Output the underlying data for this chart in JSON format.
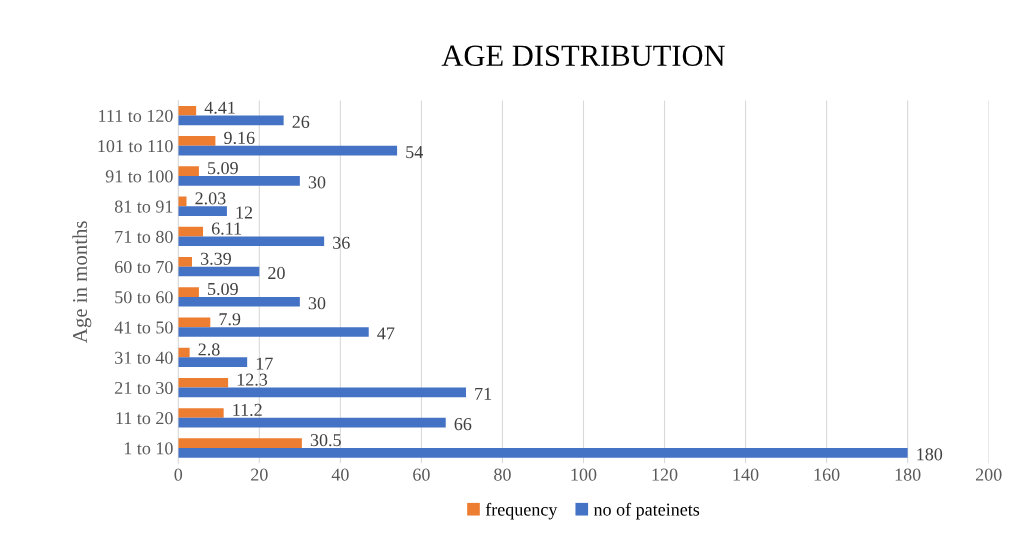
{
  "chart_data": {
    "type": "bar",
    "orientation": "horizontal",
    "title": "AGE DISTRIBUTION",
    "ylabel": "Age in months",
    "categories": [
      "111 to 120",
      "101 to 110",
      "91 to 100",
      "81 to 91",
      "71 to 80",
      "60 to 70",
      "50 to 60",
      "41 to 50",
      "31 to 40",
      "21 to 30",
      "11 to 20",
      "1 to 10"
    ],
    "series": [
      {
        "name": "frequency",
        "color": "#ed7d31",
        "values": [
          4.41,
          9.16,
          5.09,
          2.03,
          6.11,
          3.39,
          5.09,
          7.9,
          2.8,
          12.3,
          11.2,
          30.5
        ]
      },
      {
        "name": "no of pateinets",
        "color": "#4472c4",
        "values": [
          26,
          54,
          30,
          12,
          36,
          20,
          30,
          47,
          17,
          71,
          66,
          180
        ]
      }
    ],
    "xlim": [
      0,
      200
    ],
    "xticks": [
      0,
      20,
      40,
      60,
      80,
      100,
      120,
      140,
      160,
      180,
      200
    ],
    "grid": "x",
    "legend": "bottom",
    "data_labels": true
  }
}
